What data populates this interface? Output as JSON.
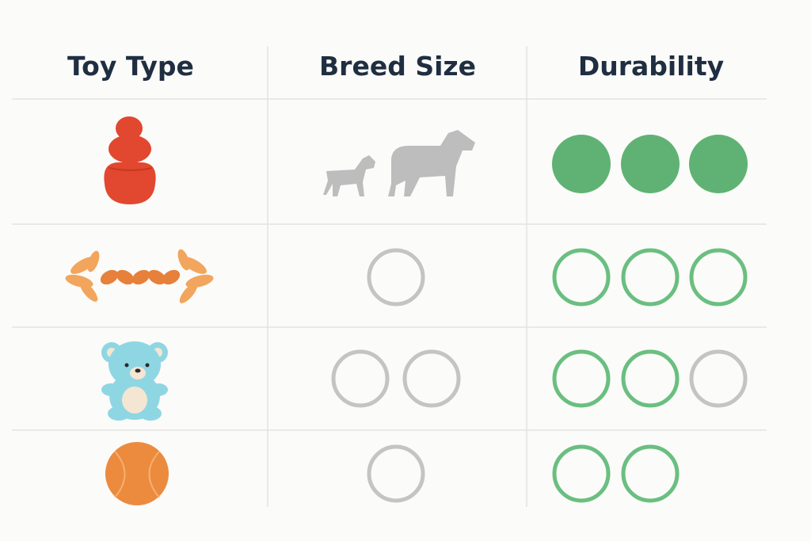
{
  "header": {
    "columns": [
      "Toy Type",
      "Breed Size",
      "Durability"
    ]
  }
}
